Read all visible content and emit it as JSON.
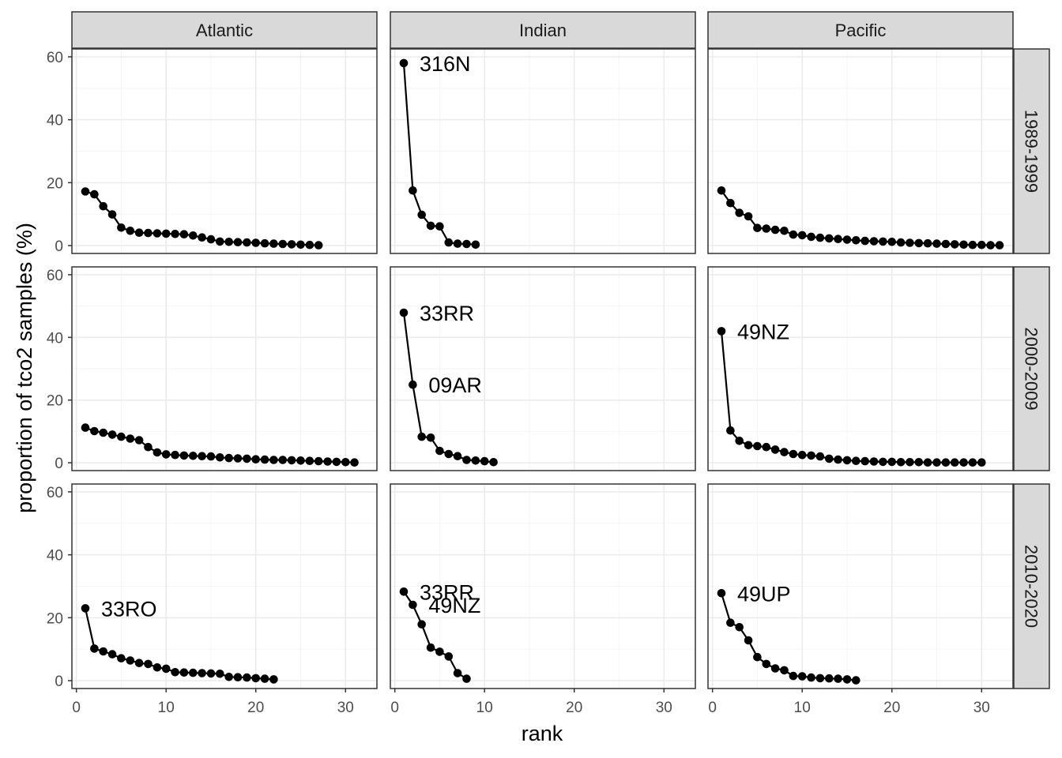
{
  "chart_data": {
    "type": "line",
    "xlabel": "rank",
    "ylabel": "proportion of tco2 samples (%)",
    "xlim": [
      -0.5,
      33.5
    ],
    "ylim": [
      -2.5,
      62.5
    ],
    "x_ticks": [
      0,
      10,
      20,
      30
    ],
    "y_ticks": [
      0,
      20,
      40,
      60
    ],
    "columns": [
      "Atlantic",
      "Indian",
      "Pacific"
    ],
    "rows": [
      "1989-1999",
      "2000-2009",
      "2010-2020"
    ],
    "panels": [
      {
        "row": 0,
        "col": 0,
        "values": [
          17.2,
          16.3,
          12.5,
          9.9,
          5.7,
          4.7,
          4.1,
          4.0,
          3.9,
          3.8,
          3.7,
          3.6,
          3.2,
          2.6,
          2.0,
          1.3,
          1.2,
          1.1,
          1.0,
          0.9,
          0.7,
          0.6,
          0.5,
          0.4,
          0.3,
          0.2,
          0.1
        ],
        "labels": []
      },
      {
        "row": 0,
        "col": 1,
        "values": [
          58.0,
          17.5,
          9.8,
          6.3,
          6.1,
          1.0,
          0.6,
          0.5,
          0.3
        ],
        "labels": [
          {
            "rank": 1,
            "text": "316N"
          }
        ]
      },
      {
        "row": 0,
        "col": 2,
        "values": [
          17.5,
          13.5,
          10.4,
          9.3,
          5.6,
          5.4,
          5.0,
          4.7,
          3.5,
          3.3,
          2.8,
          2.5,
          2.3,
          2.1,
          1.9,
          1.7,
          1.5,
          1.4,
          1.3,
          1.2,
          1.0,
          0.9,
          0.8,
          0.7,
          0.6,
          0.5,
          0.4,
          0.3,
          0.2,
          0.2,
          0.1,
          0.1
        ],
        "labels": []
      },
      {
        "row": 1,
        "col": 0,
        "values": [
          11.2,
          10.1,
          9.6,
          9.0,
          8.3,
          7.7,
          7.2,
          5.0,
          3.3,
          2.7,
          2.5,
          2.3,
          2.2,
          2.1,
          2.0,
          1.7,
          1.5,
          1.4,
          1.3,
          1.1,
          1.0,
          0.9,
          0.9,
          0.8,
          0.7,
          0.6,
          0.5,
          0.4,
          0.3,
          0.2,
          0.1
        ],
        "labels": []
      },
      {
        "row": 1,
        "col": 1,
        "values": [
          47.9,
          24.9,
          8.3,
          8.0,
          3.8,
          2.8,
          2.1,
          0.9,
          0.7,
          0.5,
          0.2
        ],
        "labels": [
          {
            "rank": 1,
            "text": "33RR"
          },
          {
            "rank": 2,
            "text": "09AR"
          }
        ]
      },
      {
        "row": 1,
        "col": 2,
        "values": [
          42.0,
          10.3,
          7.0,
          5.6,
          5.3,
          5.0,
          4.2,
          3.4,
          2.8,
          2.5,
          2.3,
          2.0,
          1.3,
          1.0,
          0.8,
          0.6,
          0.5,
          0.4,
          0.3,
          0.3,
          0.2,
          0.2,
          0.2,
          0.1,
          0.1,
          0.1,
          0.1,
          0.1,
          0.1,
          0.1
        ],
        "labels": [
          {
            "rank": 1,
            "text": "49NZ"
          }
        ]
      },
      {
        "row": 2,
        "col": 0,
        "values": [
          23.0,
          10.2,
          9.3,
          8.4,
          7.1,
          6.4,
          5.6,
          5.3,
          4.2,
          3.8,
          2.7,
          2.6,
          2.5,
          2.4,
          2.3,
          2.2,
          1.2,
          1.1,
          1.0,
          0.8,
          0.6,
          0.4
        ],
        "labels": [
          {
            "rank": 1,
            "text": "33RO"
          }
        ]
      },
      {
        "row": 2,
        "col": 1,
        "values": [
          28.3,
          24.1,
          17.9,
          10.5,
          9.2,
          7.7,
          2.4,
          0.6
        ],
        "labels": [
          {
            "rank": 1,
            "text": "33RR"
          },
          {
            "rank": 2,
            "text": "49NZ"
          }
        ]
      },
      {
        "row": 2,
        "col": 2,
        "values": [
          27.8,
          18.4,
          17.0,
          12.8,
          7.5,
          5.3,
          3.9,
          3.3,
          1.5,
          1.4,
          1.0,
          0.8,
          0.7,
          0.6,
          0.4,
          0.1
        ],
        "labels": [
          {
            "rank": 1,
            "text": "49UP"
          }
        ]
      }
    ]
  }
}
